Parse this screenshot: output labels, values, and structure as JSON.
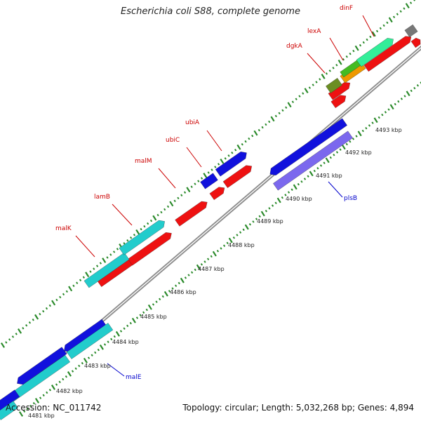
{
  "title": "Escherichia coli S88, complete genome",
  "footer": {
    "accession": "Accession: NC_011742",
    "summary": "Topology: circular; Length: 5,032,268 bp; Genes: 4,894"
  },
  "colors": {
    "backbone": "#8c8c8c",
    "ruler_dots": "#2a8a2a",
    "label_red": "#cc0000",
    "label_blue": "#0000cc",
    "cds_red": "#ee1111",
    "cds_cyan": "#22cccc",
    "cds_blue": "#1111dd",
    "cds_purple": "#7b68ee",
    "cds_mint": "#33ee99",
    "cds_green": "#44bb22",
    "cds_orange": "#ee9900",
    "cds_olive": "#6b8e23",
    "cds_grey": "#777777"
  },
  "ruler_ticks": [
    {
      "label": "4481 kbp"
    },
    {
      "label": "4482 kbp"
    },
    {
      "label": "4483 kbp"
    },
    {
      "label": "4484 kbp"
    },
    {
      "label": "4485 kbp"
    },
    {
      "label": "4486 kbp"
    },
    {
      "label": "4487 kbp"
    },
    {
      "label": "4488 kbp"
    },
    {
      "label": "4489 kbp"
    },
    {
      "label": "4490 kbp"
    },
    {
      "label": "4491 kbp"
    },
    {
      "label": "4492 kbp"
    },
    {
      "label": "4493 kbp"
    }
  ],
  "gene_labels": [
    {
      "name": "dinF",
      "color": "red"
    },
    {
      "name": "lexA",
      "color": "red"
    },
    {
      "name": "dgkA",
      "color": "red"
    },
    {
      "name": "ubiA",
      "color": "red"
    },
    {
      "name": "ubiC",
      "color": "red"
    },
    {
      "name": "malM",
      "color": "red"
    },
    {
      "name": "lamB",
      "color": "red"
    },
    {
      "name": "malK",
      "color": "red"
    },
    {
      "name": "plsB",
      "color": "blue"
    },
    {
      "name": "malE",
      "color": "blue"
    }
  ]
}
